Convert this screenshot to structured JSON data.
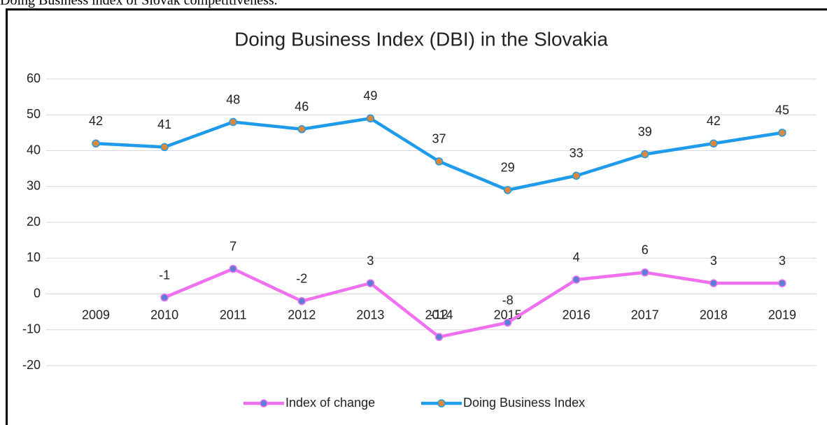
{
  "caption": "Doing Business index of Slovak competitiveness.",
  "chart_data": {
    "type": "line",
    "title": "Doing Business Index (DBI) in the Slovakia",
    "categories": [
      "2009",
      "2010",
      "2011",
      "2012",
      "2013",
      "2014",
      "2015",
      "2016",
      "2017",
      "2018",
      "2019"
    ],
    "series": [
      {
        "name": "Index of change",
        "color": "#f070f0",
        "marker_color": "#5b7fd6",
        "values": [
          null,
          -1,
          7,
          -2,
          3,
          -12,
          -8,
          4,
          6,
          3,
          3
        ]
      },
      {
        "name": "Doing Business Index",
        "color": "#1e9bea",
        "marker_color": "#e0883a",
        "values": [
          42,
          41,
          48,
          46,
          49,
          37,
          29,
          33,
          39,
          42,
          45
        ]
      }
    ],
    "ylim": [
      -20,
      60
    ],
    "yticks": [
      -20,
      -10,
      0,
      10,
      20,
      30,
      40,
      50,
      60
    ],
    "grid": true,
    "legend": "bottom",
    "data_labels": true
  }
}
